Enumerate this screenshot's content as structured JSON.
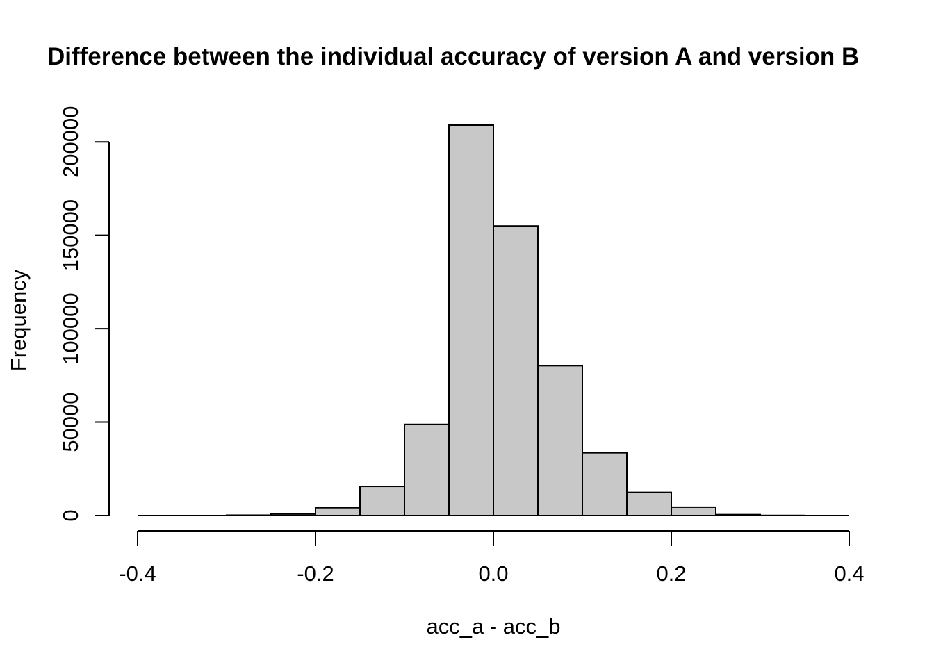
{
  "chart_data": {
    "type": "bar",
    "title": "Difference between the individual accuracy of version A and version B",
    "xlabel": "acc_a - acc_b",
    "ylabel": "Frequency",
    "bin_edges": [
      -0.4,
      -0.35,
      -0.3,
      -0.25,
      -0.2,
      -0.15,
      -0.1,
      -0.05,
      0.0,
      0.05,
      0.1,
      0.15,
      0.2,
      0.25,
      0.3,
      0.35,
      0.4
    ],
    "values": [
      0,
      0,
      200,
      800,
      4200,
      15600,
      48800,
      209000,
      155000,
      80200,
      33600,
      12400,
      4500,
      500,
      80,
      0
    ],
    "xlim": [
      -0.4,
      0.4
    ],
    "ylim": [
      0,
      209000
    ],
    "xticks": [
      -0.4,
      -0.2,
      0.0,
      0.2,
      0.4
    ],
    "xtick_labels": [
      "-0.4",
      "-0.2",
      "0.0",
      "0.2",
      "0.4"
    ],
    "yticks": [
      0,
      50000,
      100000,
      150000,
      200000
    ],
    "ytick_labels": [
      "0",
      "50000",
      "100000",
      "150000",
      "200000"
    ],
    "bar_color": "#c8c8c8",
    "grid": false,
    "legend": "none"
  }
}
